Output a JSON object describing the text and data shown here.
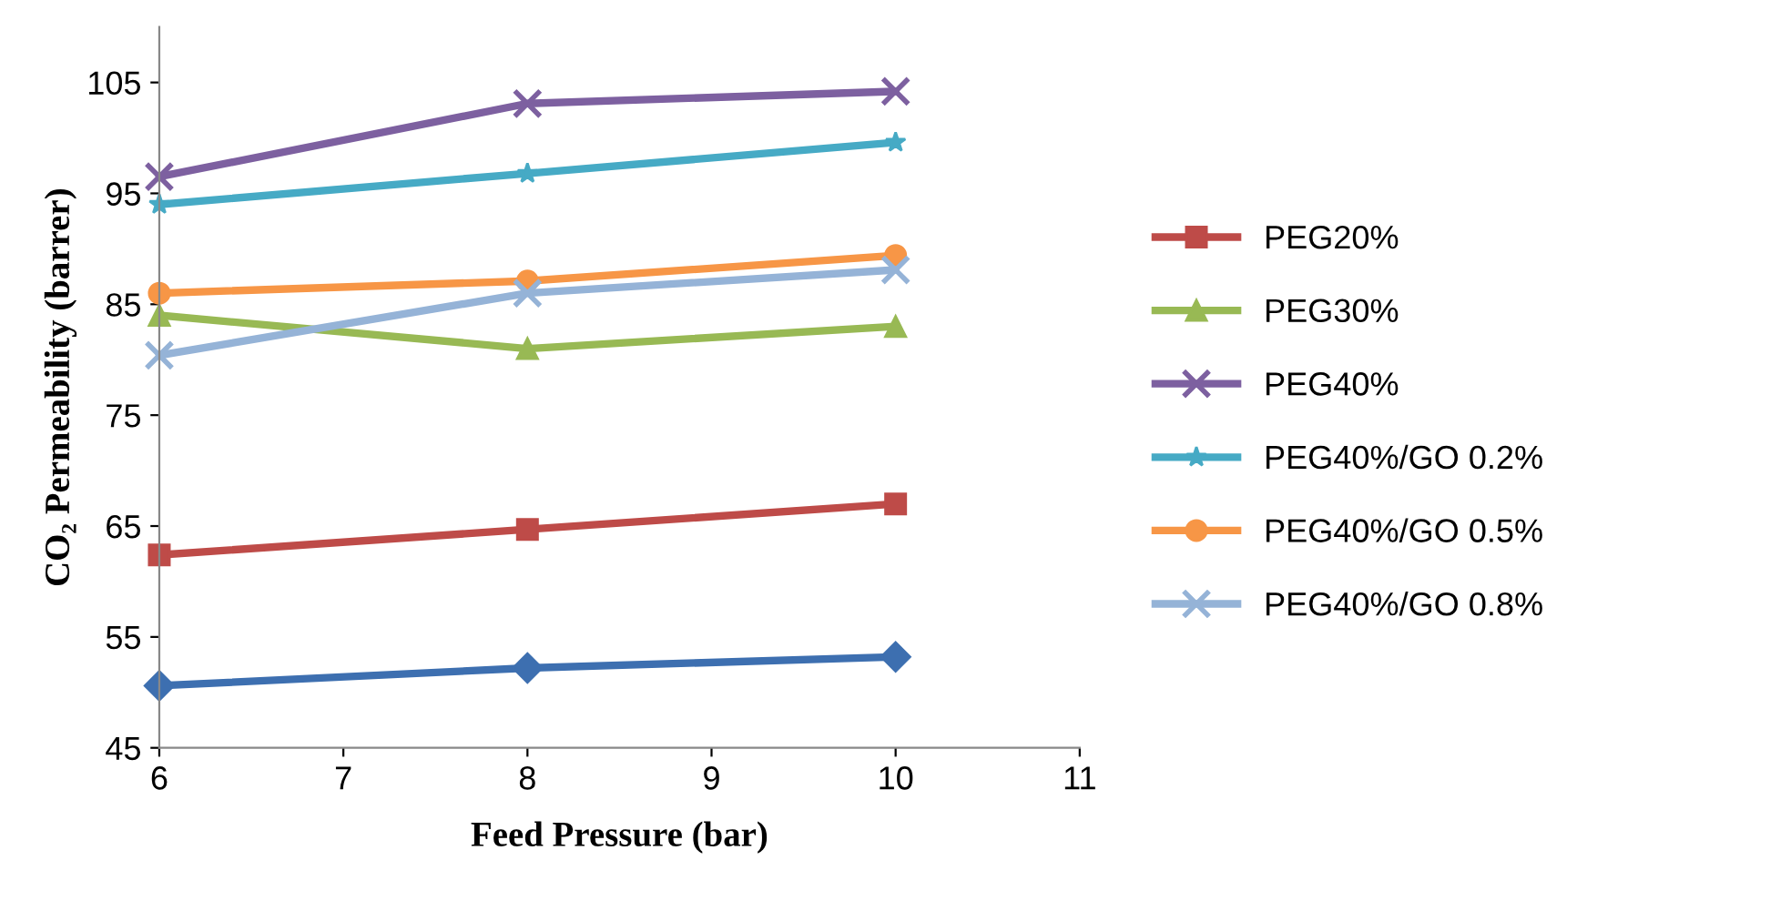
{
  "chart_data": {
    "type": "line",
    "xlabel": "Feed Pressure (bar)",
    "ylabel": "CO₂ Permeability (barrer)",
    "x": [
      6,
      8,
      10
    ],
    "xlim": [
      6,
      11
    ],
    "xticks": [
      6,
      7,
      8,
      9,
      10,
      11
    ],
    "ylim": [
      45,
      110
    ],
    "yticks": [
      45,
      55,
      65,
      75,
      85,
      95,
      105
    ],
    "grid": false,
    "legend": "right",
    "line_style": "solid",
    "series": [
      {
        "color": "#3d6fb0",
        "marker": "diamond",
        "values": [
          50.6,
          52.2,
          53.2
        ]
      },
      {
        "name": "PEG20%",
        "color": "#be4b48",
        "marker": "square",
        "values": [
          62.4,
          64.7,
          67.0
        ]
      },
      {
        "name": "PEG30%",
        "color": "#98b954",
        "marker": "triangle",
        "values": [
          84.0,
          81.0,
          83.0
        ]
      },
      {
        "name": "PEG40%",
        "color": "#7d60a0",
        "marker": "cross",
        "values": [
          96.5,
          103.1,
          104.2
        ]
      },
      {
        "name": "PEG40%/GO 0.2%",
        "color": "#46aac5",
        "marker": "star",
        "values": [
          94.0,
          96.8,
          99.6
        ]
      },
      {
        "name": "PEG40%/GO 0.5%",
        "color": "#f79646",
        "marker": "circle",
        "values": [
          86.0,
          87.1,
          89.4
        ]
      },
      {
        "name": "PEG40%/GO 0.8%",
        "color": "#95b3d7",
        "marker": "cross",
        "values": [
          80.4,
          86.0,
          88.1
        ]
      }
    ]
  }
}
